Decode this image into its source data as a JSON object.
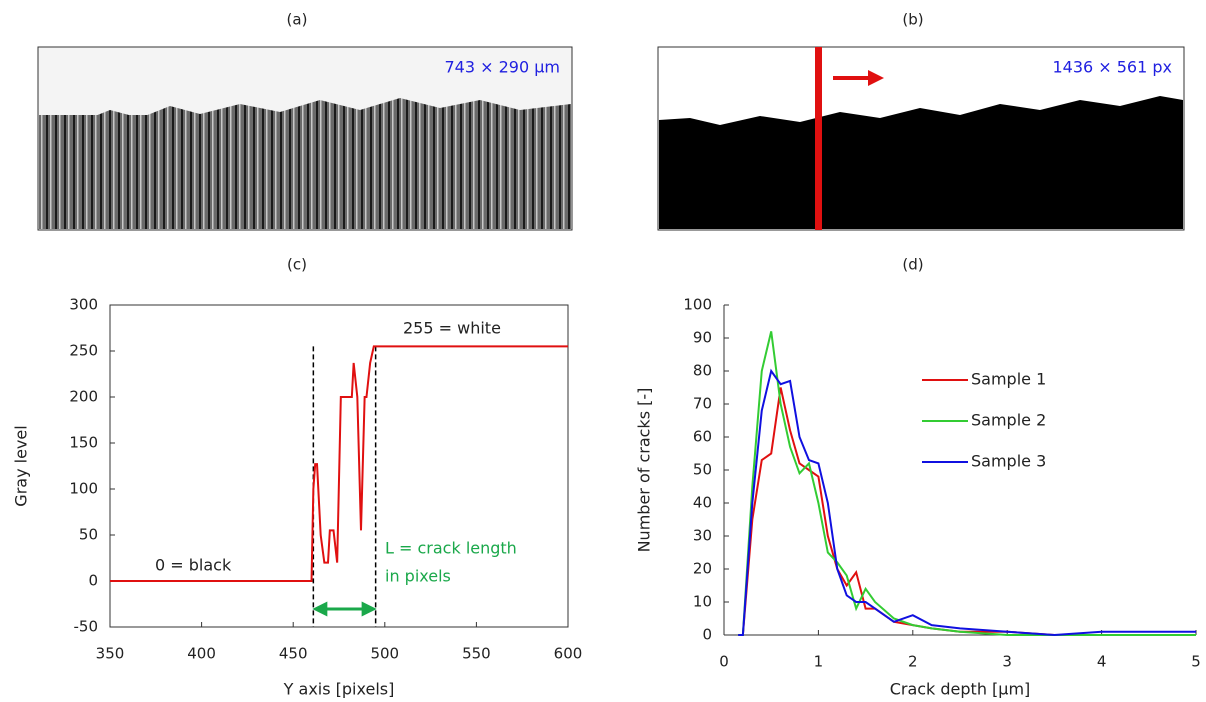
{
  "panels": [
    {
      "label": "(a)",
      "annotation": "743 × 290 µm"
    },
    {
      "label": "(b)",
      "annotation": "1436 × 561 px"
    },
    {
      "label": "(c)"
    },
    {
      "label": "(d)"
    }
  ],
  "chart_data": [
    {
      "type": "line",
      "xlabel": "Y axis [pixels]",
      "ylabel": "Gray level",
      "x": [
        350,
        460,
        461,
        462,
        463,
        465,
        467,
        469,
        470,
        472,
        474,
        476,
        478,
        480,
        482,
        483,
        485,
        487,
        489,
        490,
        492,
        494,
        495,
        600
      ],
      "series": [
        {
          "name": "Gray level",
          "color": "#e01010",
          "values": [
            0,
            0,
            100,
            127,
            127,
            50,
            20,
            20,
            55,
            55,
            20,
            200,
            200,
            200,
            200,
            237,
            200,
            55,
            200,
            200,
            237,
            255,
            255,
            255
          ]
        }
      ],
      "dashed_x": [
        461,
        495
      ],
      "annotations": [
        "255 = white",
        "0 = black",
        "L = crack length",
        "in pixels"
      ],
      "xlim": [
        350,
        600
      ],
      "xticks": [
        350,
        400,
        450,
        500,
        550,
        600
      ],
      "ylim": [
        -50,
        300
      ],
      "yticks": [
        -50,
        0,
        50,
        100,
        150,
        200,
        250,
        300
      ]
    },
    {
      "type": "line",
      "xlabel": "Crack depth [µm]",
      "ylabel": "Number of cracks [-]",
      "x": [
        0.15,
        0.2,
        0.3,
        0.4,
        0.5,
        0.6,
        0.7,
        0.8,
        0.9,
        1.0,
        1.1,
        1.2,
        1.3,
        1.4,
        1.5,
        1.6,
        1.8,
        2.0,
        2.2,
        2.5,
        3.0,
        3.5,
        4.0,
        5.0
      ],
      "series": [
        {
          "name": "Sample 1",
          "color": "#e01010",
          "values": [
            0,
            0,
            35,
            53,
            55,
            75,
            62,
            52,
            50,
            48,
            30,
            20,
            15,
            19,
            8,
            8,
            4,
            3,
            2,
            1,
            1,
            0,
            0,
            0
          ]
        },
        {
          "name": "Sample 2",
          "color": "#33cc33",
          "values": [
            0,
            0,
            45,
            80,
            92,
            70,
            57,
            49,
            52,
            40,
            25,
            22,
            18,
            8,
            14,
            10,
            5,
            3,
            2,
            1,
            0,
            0,
            0,
            0
          ]
        },
        {
          "name": "Sample 3",
          "color": "#1010e0",
          "values": [
            0,
            0,
            40,
            68,
            80,
            76,
            77,
            60,
            53,
            52,
            40,
            20,
            12,
            10,
            10,
            8,
            4,
            6,
            3,
            2,
            1,
            0,
            1,
            1
          ]
        }
      ],
      "xlim": [
        0,
        5
      ],
      "xticks": [
        0,
        1,
        2,
        3,
        4,
        5
      ],
      "ylim": [
        0,
        100
      ],
      "yticks": [
        0,
        10,
        20,
        30,
        40,
        50,
        60,
        70,
        80,
        90,
        100
      ]
    }
  ]
}
